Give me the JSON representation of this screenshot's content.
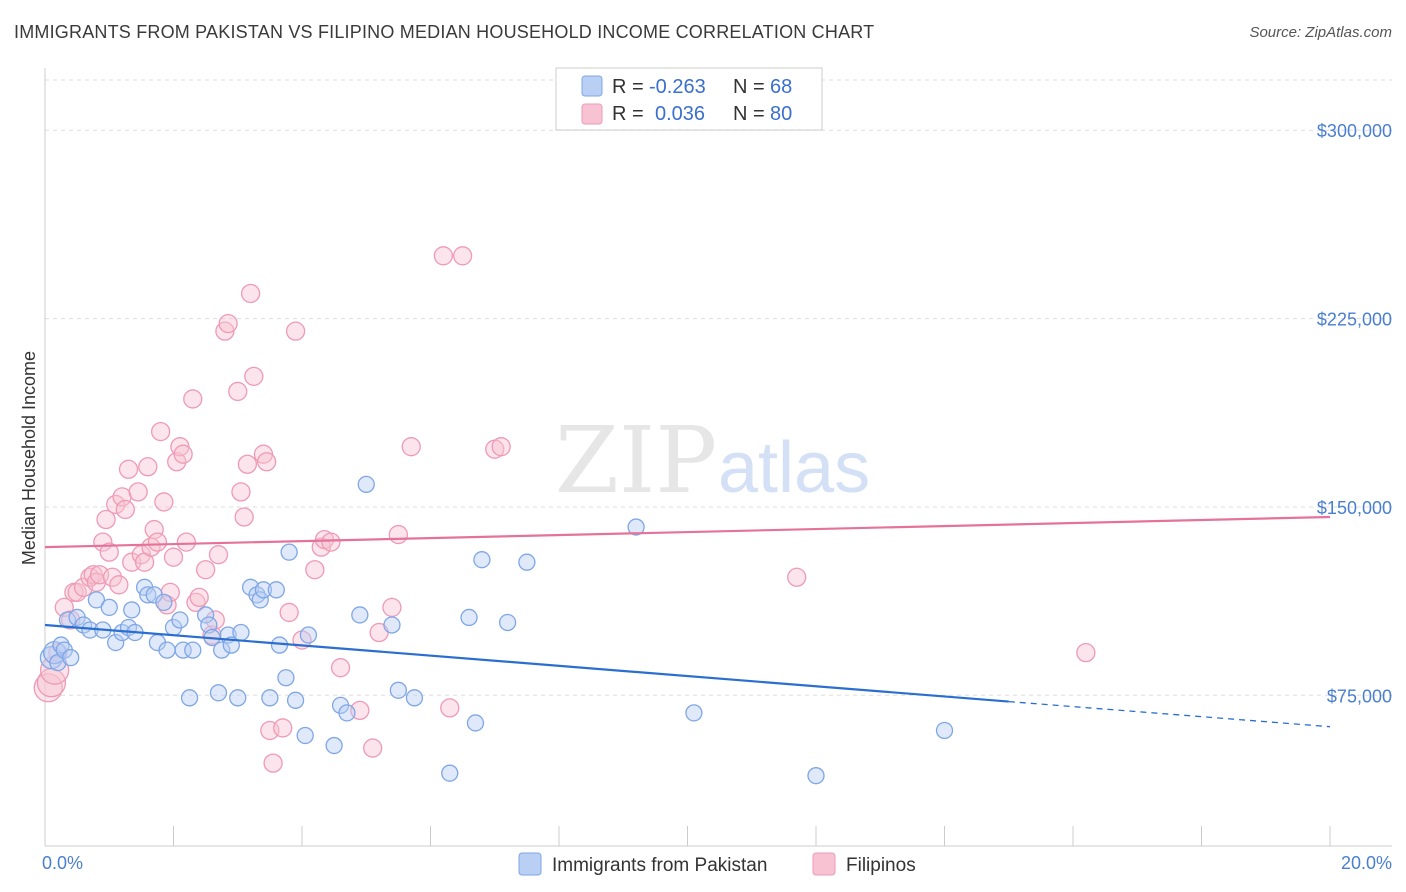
{
  "title": "IMMIGRANTS FROM PAKISTAN VS FILIPINO MEDIAN HOUSEHOLD INCOME CORRELATION CHART",
  "source": "Source: ZipAtlas.com",
  "watermark": {
    "zip": "ZIP",
    "atlas": "atlas"
  },
  "colors": {
    "blue_fill": "#b9cff3",
    "blue_stroke": "#7fa6e6",
    "blue_line": "#2a6fd0",
    "pink_fill": "#f7c3d3",
    "pink_stroke": "#ee9ab5",
    "pink_line": "#e5729a",
    "axis_text": "#4a7fd0",
    "grid": "#dddddd"
  },
  "legend": {
    "rows": [
      {
        "r_label": "R =",
        "r_value": "-0.263",
        "n_label": "N =",
        "n_value": "68"
      },
      {
        "r_label": "R =",
        "r_value": "0.036",
        "n_label": "N =",
        "n_value": "80"
      }
    ]
  },
  "chart_data": {
    "type": "scatter",
    "title": "IMMIGRANTS FROM PAKISTAN VS FILIPINO MEDIAN HOUSEHOLD INCOME CORRELATION CHART",
    "xlabel": "",
    "ylabel": "Median Household Income",
    "xlim": [
      0,
      20
    ],
    "ylim": [
      15000,
      320000
    ],
    "x_tick_labels": [
      "0.0%",
      "20.0%"
    ],
    "y_ticks": [
      75000,
      150000,
      225000,
      300000
    ],
    "y_tick_labels": [
      "$75,000",
      "$150,000",
      "$225,000",
      "$300,000"
    ],
    "grid": true,
    "legend_position": "top-center",
    "series": [
      {
        "name": "Immigrants from Pakistan",
        "color": "#b9cff3",
        "trend": {
          "x0": 0,
          "y0": 103000,
          "x1": 15,
          "y1": 72500,
          "dash_to_x": 20,
          "dash_to_y": 62500
        },
        "points": [
          [
            0.1,
            90000
          ],
          [
            0.15,
            92000
          ],
          [
            0.2,
            88000
          ],
          [
            0.25,
            95000
          ],
          [
            0.3,
            93000
          ],
          [
            0.35,
            105000
          ],
          [
            0.4,
            90000
          ],
          [
            0.5,
            106000
          ],
          [
            0.6,
            103000
          ],
          [
            0.7,
            101000
          ],
          [
            0.8,
            113000
          ],
          [
            0.9,
            101000
          ],
          [
            1.0,
            110000
          ],
          [
            1.1,
            96000
          ],
          [
            1.2,
            100000
          ],
          [
            1.3,
            102000
          ],
          [
            1.35,
            109000
          ],
          [
            1.4,
            100000
          ],
          [
            1.55,
            118000
          ],
          [
            1.6,
            115000
          ],
          [
            1.7,
            115000
          ],
          [
            1.75,
            96000
          ],
          [
            1.85,
            112000
          ],
          [
            1.9,
            93000
          ],
          [
            2.0,
            102000
          ],
          [
            2.1,
            105000
          ],
          [
            2.15,
            93000
          ],
          [
            2.25,
            74000
          ],
          [
            2.3,
            93000
          ],
          [
            2.5,
            107000
          ],
          [
            2.55,
            103000
          ],
          [
            2.6,
            98000
          ],
          [
            2.7,
            76000
          ],
          [
            2.75,
            93000
          ],
          [
            2.85,
            99000
          ],
          [
            2.9,
            95000
          ],
          [
            3.0,
            74000
          ],
          [
            3.05,
            100000
          ],
          [
            3.2,
            118000
          ],
          [
            3.3,
            115000
          ],
          [
            3.35,
            113000
          ],
          [
            3.4,
            117000
          ],
          [
            3.5,
            74000
          ],
          [
            3.6,
            117000
          ],
          [
            3.65,
            95000
          ],
          [
            3.75,
            82000
          ],
          [
            3.8,
            132000
          ],
          [
            3.9,
            73000
          ],
          [
            4.05,
            59000
          ],
          [
            4.1,
            99000
          ],
          [
            4.5,
            55000
          ],
          [
            4.6,
            71000
          ],
          [
            4.7,
            68000
          ],
          [
            4.9,
            107000
          ],
          [
            5.0,
            159000
          ],
          [
            5.4,
            103000
          ],
          [
            5.5,
            77000
          ],
          [
            5.75,
            74000
          ],
          [
            6.3,
            44000
          ],
          [
            6.6,
            106000
          ],
          [
            6.7,
            64000
          ],
          [
            6.8,
            129000
          ],
          [
            7.2,
            104000
          ],
          [
            7.5,
            128000
          ],
          [
            9.2,
            142000
          ],
          [
            10.1,
            68000
          ],
          [
            12.0,
            43000
          ],
          [
            14.0,
            61000
          ]
        ]
      },
      {
        "name": "Filipinos",
        "color": "#f7c3d3",
        "trend": {
          "x0": 0,
          "y0": 134000,
          "x1": 20,
          "y1": 146000
        },
        "points": [
          [
            0.05,
            78000
          ],
          [
            0.1,
            80000
          ],
          [
            0.15,
            85000
          ],
          [
            0.2,
            92000
          ],
          [
            0.3,
            110000
          ],
          [
            0.4,
            105000
          ],
          [
            0.45,
            116000
          ],
          [
            0.5,
            116000
          ],
          [
            0.6,
            118000
          ],
          [
            0.7,
            122000
          ],
          [
            0.75,
            123000
          ],
          [
            0.8,
            120000
          ],
          [
            0.85,
            123000
          ],
          [
            0.9,
            136000
          ],
          [
            0.95,
            145000
          ],
          [
            1.0,
            132000
          ],
          [
            1.05,
            122000
          ],
          [
            1.1,
            151000
          ],
          [
            1.15,
            119000
          ],
          [
            1.2,
            154000
          ],
          [
            1.25,
            149000
          ],
          [
            1.3,
            165000
          ],
          [
            1.35,
            128000
          ],
          [
            1.45,
            156000
          ],
          [
            1.5,
            131000
          ],
          [
            1.55,
            128000
          ],
          [
            1.6,
            166000
          ],
          [
            1.65,
            134000
          ],
          [
            1.7,
            141000
          ],
          [
            1.75,
            136000
          ],
          [
            1.8,
            180000
          ],
          [
            1.85,
            152000
          ],
          [
            1.9,
            111000
          ],
          [
            1.95,
            116000
          ],
          [
            2.0,
            130000
          ],
          [
            2.05,
            168000
          ],
          [
            2.1,
            174000
          ],
          [
            2.15,
            171000
          ],
          [
            2.2,
            136000
          ],
          [
            2.3,
            193000
          ],
          [
            2.35,
            112000
          ],
          [
            2.4,
            114000
          ],
          [
            2.5,
            125000
          ],
          [
            2.6,
            99000
          ],
          [
            2.65,
            105000
          ],
          [
            2.7,
            131000
          ],
          [
            2.8,
            220000
          ],
          [
            2.85,
            223000
          ],
          [
            3.0,
            196000
          ],
          [
            3.05,
            156000
          ],
          [
            3.1,
            146000
          ],
          [
            3.15,
            167000
          ],
          [
            3.2,
            235000
          ],
          [
            3.25,
            202000
          ],
          [
            3.4,
            171000
          ],
          [
            3.45,
            168000
          ],
          [
            3.5,
            61000
          ],
          [
            3.55,
            48000
          ],
          [
            3.7,
            62000
          ],
          [
            3.8,
            108000
          ],
          [
            3.9,
            220000
          ],
          [
            4.0,
            97000
          ],
          [
            4.2,
            125000
          ],
          [
            4.3,
            134000
          ],
          [
            4.35,
            137000
          ],
          [
            4.45,
            136000
          ],
          [
            4.6,
            86000
          ],
          [
            4.9,
            69000
          ],
          [
            5.1,
            54000
          ],
          [
            5.2,
            100000
          ],
          [
            5.4,
            110000
          ],
          [
            5.5,
            139000
          ],
          [
            5.7,
            174000
          ],
          [
            6.2,
            250000
          ],
          [
            6.3,
            70000
          ],
          [
            6.5,
            250000
          ],
          [
            7.0,
            173000
          ],
          [
            7.1,
            174000
          ],
          [
            11.7,
            122000
          ],
          [
            16.2,
            92000
          ]
        ]
      }
    ]
  }
}
